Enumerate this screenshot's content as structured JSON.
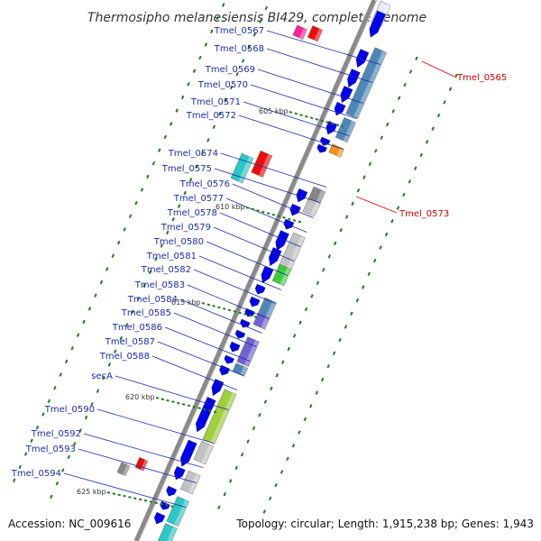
{
  "title": "Thermosipho melanesiensis BI429, complete genome",
  "footer": {
    "accession": "Accession: NC_009616",
    "topology": "Topology: circular; Length: 1,915,238 bp; Genes: 1,943"
  },
  "colors": {
    "forward_cds": "#0000ee",
    "reverse_cds": "#ee0000",
    "backbone": "#8a8a8a",
    "tick": "#1f7a1f",
    "label_forward": "#1a2aa8",
    "label_reverse": "#cc0000",
    "cog_steelblue": "#4682b4",
    "cog_orange": "#ff8c00",
    "cog_gray": "#808080",
    "cog_lightgray": "#c0c0c0",
    "cog_green": "#32cd32",
    "cog_slateblue": "#6a5acd",
    "cog_yellowgreen": "#9acd32",
    "cog_turquoise": "#20c5c5",
    "cog_red": "#ff0000",
    "cog_magenta": "#ff1493"
  },
  "forward_labels": [
    "Tmel_0567",
    "Tmel_0568",
    "Tmel_0569",
    "Tmel_0570",
    "Tmel_0571",
    "Tmel_0572",
    "Tmel_0574",
    "Tmel_0575",
    "Tmel_0576",
    "Tmel_0577",
    "Tmel_0578",
    "Tmel_0579",
    "Tmel_0580",
    "Tmel_0581",
    "Tmel_0582",
    "Tmel_0583",
    "Tmel_0584",
    "Tmel_0585",
    "Tmel_0586",
    "Tmel_0587",
    "Tmel_0588",
    "secA",
    "Tmel_0590",
    "Tmel_0592",
    "Tmel_0593",
    "Tmel_0594"
  ],
  "reverse_labels": [
    "Tmel_0565",
    "Tmel_0573"
  ],
  "kbp_labels": [
    "605 kbp",
    "610 kbp",
    "615 kbp",
    "620 kbp",
    "625 kbp"
  ]
}
